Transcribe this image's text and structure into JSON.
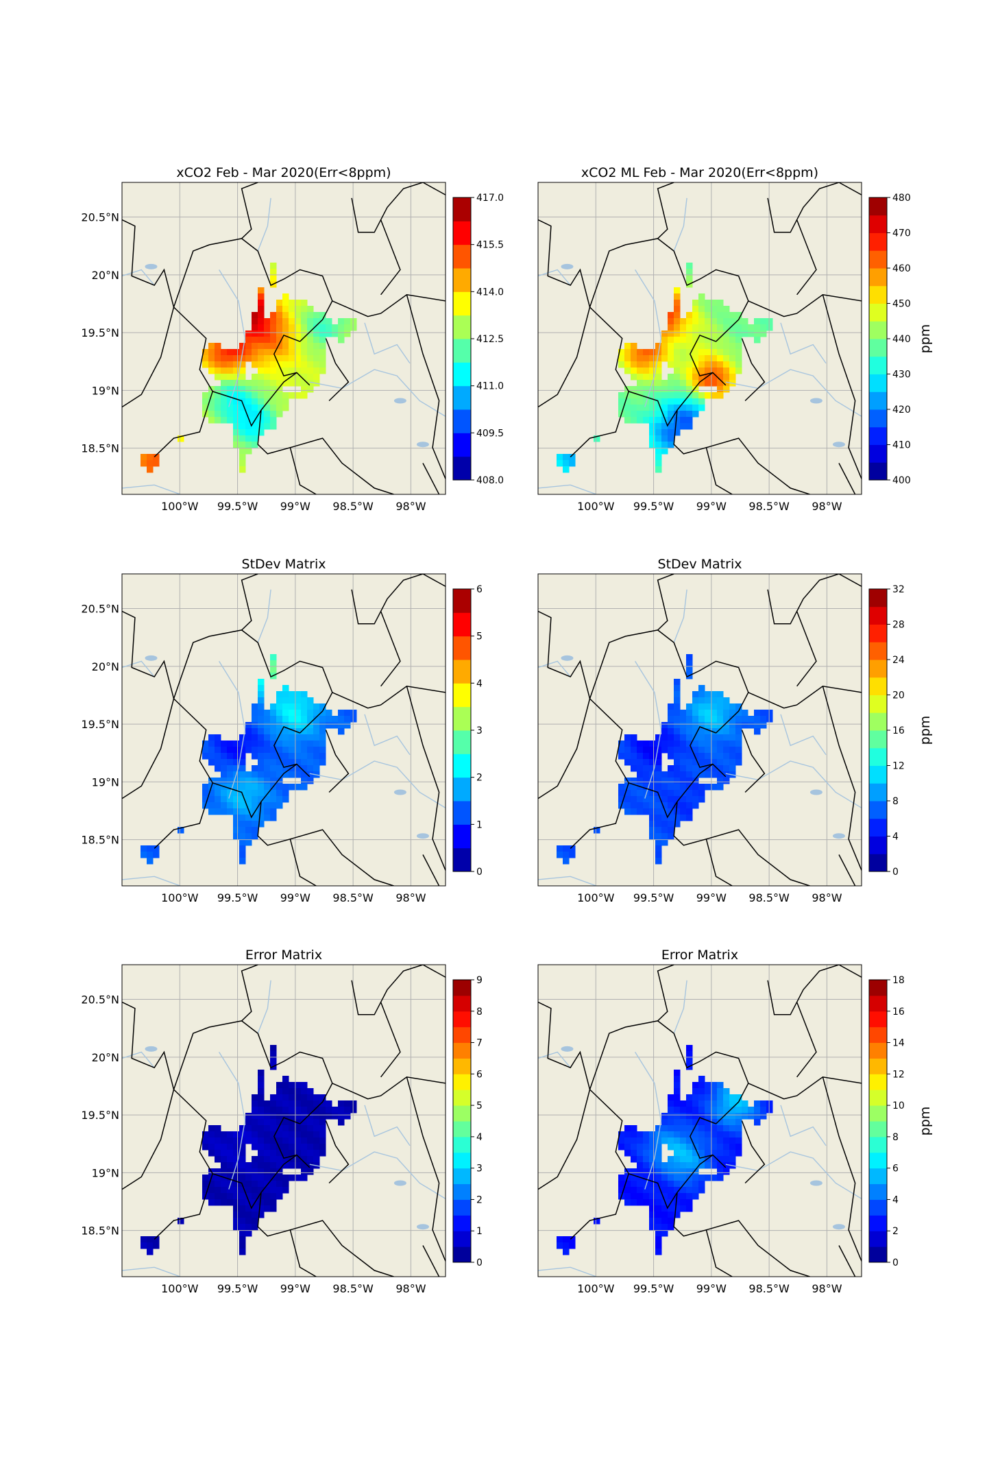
{
  "figure": {
    "lat_ticks": [
      "20.5°N",
      "20°N",
      "19.5°N",
      "19°N",
      "18.5°N"
    ],
    "lon_ticks": [
      "100°W",
      "99.5°W",
      "99°W",
      "98.5°W",
      "98°W"
    ],
    "colors": {
      "land": "#efedde",
      "borders": "#000000",
      "rivers": "#a6c4de",
      "grid": "#b0b0b0"
    }
  },
  "chart_data": [
    {
      "type": "heatmap",
      "title": "xCO2 Feb - Mar 2020(Err<8ppm)",
      "xlim": [
        -100.5,
        -97.7
      ],
      "ylim": [
        18.1,
        20.8
      ],
      "colorbar": {
        "range": [
          408.0,
          418.0
        ],
        "ticks": [
          "408.0",
          "409.5",
          "411.0",
          "412.5",
          "414.0",
          "415.5",
          "417.0"
        ],
        "label": ""
      },
      "field": {
        "base": 413.8,
        "min": 408.0,
        "max": 418.0,
        "hot": [
          [
            19.7,
            -99.4,
            3.6
          ],
          [
            19.33,
            -99.58,
            2.6
          ],
          [
            19.45,
            -99.18,
            1.6
          ],
          [
            18.95,
            -99.55,
            -1.8
          ],
          [
            18.7,
            -99.35,
            -2.0
          ],
          [
            18.4,
            -100.2,
            2.2
          ],
          [
            19.55,
            -98.75,
            -1.5
          ]
        ]
      }
    },
    {
      "type": "heatmap",
      "title": "xCO2 ML Feb - Mar 2020(Err<8ppm)",
      "xlim": [
        -100.5,
        -97.7
      ],
      "ylim": [
        18.1,
        20.8
      ],
      "colorbar": {
        "range": [
          400,
          480
        ],
        "ticks": [
          "400",
          "410",
          "420",
          "430",
          "440",
          "450",
          "460",
          "470",
          "480"
        ],
        "label": "ppm"
      },
      "field": {
        "base": 438.0,
        "min": 400,
        "max": 480,
        "hot": [
          [
            19.7,
            -99.4,
            28
          ],
          [
            19.33,
            -99.58,
            24
          ],
          [
            19.08,
            -99.0,
            28
          ],
          [
            18.8,
            -99.15,
            -17
          ],
          [
            18.6,
            -99.35,
            -15
          ],
          [
            18.4,
            -100.2,
            -13
          ],
          [
            19.5,
            -99.1,
            6
          ]
        ]
      }
    },
    {
      "type": "heatmap",
      "title": "StDev Matrix",
      "xlim": [
        -100.5,
        -97.7
      ],
      "ylim": [
        18.1,
        20.8
      ],
      "colorbar": {
        "range": [
          0,
          6
        ],
        "ticks": [
          "0",
          "1",
          "2",
          "3",
          "4",
          "5",
          "6"
        ],
        "label": ""
      },
      "field": {
        "base": 1.3,
        "min": 0,
        "max": 6,
        "hot": [
          [
            19.6,
            -99.0,
            0.9
          ],
          [
            19.3,
            -99.5,
            -0.5
          ],
          [
            18.9,
            -99.45,
            0.6
          ],
          [
            20.0,
            -99.23,
            1.6
          ]
        ]
      }
    },
    {
      "type": "heatmap",
      "title": "StDev Matrix",
      "xlim": [
        -100.5,
        -97.7
      ],
      "ylim": [
        18.1,
        20.8
      ],
      "colorbar": {
        "range": [
          0,
          32
        ],
        "ticks": [
          "0",
          "4",
          "8",
          "12",
          "16",
          "20",
          "24",
          "28",
          "32"
        ],
        "label": "ppm"
      },
      "field": {
        "base": 6.5,
        "min": 0,
        "max": 32,
        "hot": [
          [
            19.6,
            -99.0,
            4.0
          ],
          [
            19.3,
            -99.5,
            -2.5
          ],
          [
            18.8,
            -99.2,
            -1.0
          ]
        ]
      }
    },
    {
      "type": "heatmap",
      "title": "Error Matrix",
      "xlim": [
        -100.5,
        -97.7
      ],
      "ylim": [
        18.1,
        20.8
      ],
      "colorbar": {
        "range": [
          0,
          9
        ],
        "ticks": [
          "0",
          "1",
          "2",
          "3",
          "4",
          "5",
          "6",
          "7",
          "8",
          "9"
        ],
        "label": ""
      },
      "field": {
        "base": 0.45,
        "min": 0,
        "max": 9,
        "hot": [
          [
            19.3,
            -99.5,
            0.2
          ]
        ]
      }
    },
    {
      "type": "heatmap",
      "title": "Error Matrix",
      "xlim": [
        -100.5,
        -97.7
      ],
      "ylim": [
        18.1,
        20.8
      ],
      "colorbar": {
        "range": [
          0,
          19
        ],
        "ticks": [
          "0",
          "2",
          "4",
          "6",
          "8",
          "10",
          "12",
          "14",
          "16",
          "18"
        ],
        "label": "ppm"
      },
      "field": {
        "base": 2.6,
        "min": 0,
        "max": 19,
        "hot": [
          [
            19.6,
            -98.8,
            3.5
          ],
          [
            19.1,
            -99.2,
            2.5
          ],
          [
            19.25,
            -99.4,
            2.0
          ]
        ]
      }
    }
  ]
}
